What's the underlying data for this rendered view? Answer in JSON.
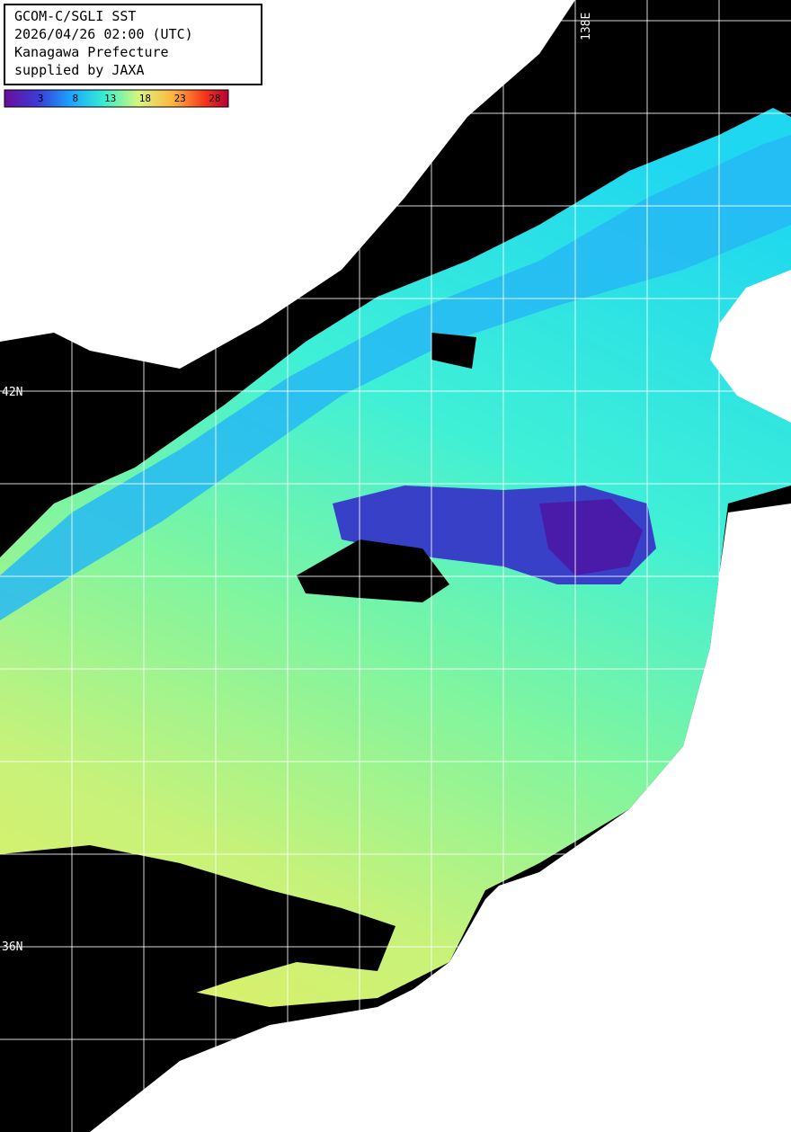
{
  "header": {
    "lines": [
      "GCOM-C/SGLI SST",
      "2026/04/26 02:00 (UTC)",
      "Kanagawa Prefecture",
      "supplied by JAXA"
    ]
  },
  "colorbar": {
    "ticks": [
      3,
      8,
      13,
      18,
      23,
      28
    ]
  },
  "grid_labels": {
    "lat": [
      "42N",
      "36N"
    ],
    "lon": [
      "138E"
    ]
  }
}
